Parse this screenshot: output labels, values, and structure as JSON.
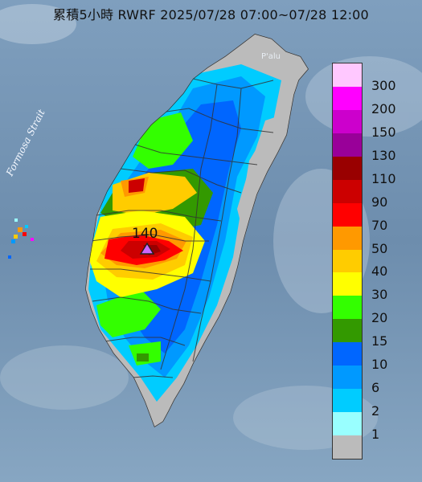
{
  "title": "累積5小時 RWRF 2025/07/28 07:00~07/28 12:00",
  "strait_label": "Formosa Strait",
  "place_label": "P'alu",
  "max_value_label": "140",
  "legend": {
    "levels": [
      {
        "label": "300",
        "color": "#ffc8ff"
      },
      {
        "label": "200",
        "color": "#ff00ff"
      },
      {
        "label": "150",
        "color": "#cc00cc"
      },
      {
        "label": "130",
        "color": "#990099"
      },
      {
        "label": "110",
        "color": "#990000"
      },
      {
        "label": "90",
        "color": "#cc0000"
      },
      {
        "label": "70",
        "color": "#ff0000"
      },
      {
        "label": "50",
        "color": "#ff9900"
      },
      {
        "label": "40",
        "color": "#ffcc00"
      },
      {
        "label": "30",
        "color": "#ffff00"
      },
      {
        "label": "20",
        "color": "#33ff00"
      },
      {
        "label": "15",
        "color": "#339900"
      },
      {
        "label": "10",
        "color": "#0066ff"
      },
      {
        "label": "6",
        "color": "#0099ff"
      },
      {
        "label": "2",
        "color": "#00ccff"
      },
      {
        "label": "1",
        "color": "#99ffff"
      },
      {
        "label": "",
        "color": "#bbbbbb"
      }
    ]
  },
  "colors": {
    "sea": "#6f8fad",
    "land_dry": "#bbbbbb",
    "max_marker": "#cc66ff"
  },
  "icons": {
    "max_marker": "triangle-icon"
  }
}
